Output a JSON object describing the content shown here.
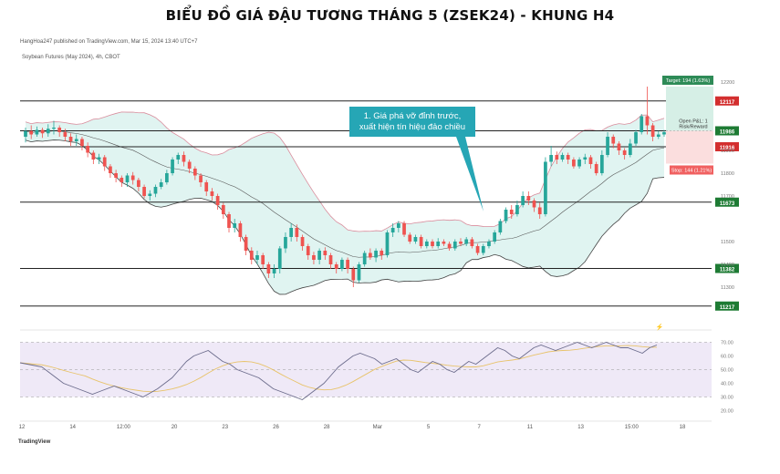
{
  "title": "BIỂU ĐỒ GIÁ ĐẬU TƯƠNG THÁNG 5 (ZSEK24) - KHUNG H4",
  "publisher_line": "HangHoa247 published on TradingView.com, Mar 15, 2024 13:40 UTC+7",
  "symbol_line": "Soybean Futures (May 2024), 4h, CBOT",
  "brand": "TradingView",
  "colors": {
    "up": "#26a69a",
    "down": "#ef5350",
    "band_fill": "#e0f4f1",
    "upper_band": "#d98c9c",
    "lower_band": "#444444",
    "basis": "#555555",
    "rsi_line": "#6c6c8c",
    "rsi_ma": "#e8c36a",
    "rsi_fill": "#efe9f7",
    "annotation_bg": "#26a6b5",
    "level_label_green": "#1e7b34",
    "level_label_red": "#d32f2f",
    "target_bg": "#2e8b57",
    "stop_bg": "#f06060"
  },
  "annotation": "1. Giá phá vỡ đỉnh trước,\nxuất hiện tín hiệu đảo chiều",
  "trade_box": {
    "target_label": "Target: 194 (1.63%)",
    "open_label": "Open P&L: 1",
    "rr_label": "Risk/Reward",
    "stop_label": "Stop: 144 (1.21%)"
  },
  "chart_data": {
    "type": "candlestick",
    "price_axis": {
      "ticks": [
        "12200",
        "11900",
        "11800",
        "11700",
        "11500",
        "11400",
        "11300"
      ],
      "range": [
        11140,
        12280
      ]
    },
    "levels": [
      {
        "value": 12117,
        "label": "12117",
        "color": "red"
      },
      {
        "value": 11986,
        "label": "11986",
        "color": "green"
      },
      {
        "value": 11916,
        "label": "11916",
        "color": "red"
      },
      {
        "value": 11673,
        "label": "11673",
        "color": "green"
      },
      {
        "value": 11382,
        "label": "11382",
        "color": "green"
      },
      {
        "value": 11217,
        "label": "11217",
        "color": "green"
      }
    ],
    "x_axis_ticks": [
      "12",
      "14",
      "12:00",
      "20",
      "23",
      "26",
      "28",
      "Mar",
      "5",
      "7",
      "11",
      "13",
      "15:00",
      "18"
    ],
    "candles": [
      [
        11960,
        11985,
        11935,
        12000
      ],
      [
        11985,
        11970,
        11950,
        12010
      ],
      [
        11970,
        11990,
        11960,
        12005
      ],
      [
        11990,
        11975,
        11955,
        12000
      ],
      [
        11975,
        11995,
        11960,
        12015
      ],
      [
        11995,
        12000,
        11970,
        12030
      ],
      [
        12000,
        11980,
        11960,
        12010
      ],
      [
        11980,
        11960,
        11940,
        11995
      ],
      [
        11960,
        11940,
        11920,
        11975
      ],
      [
        11940,
        11950,
        11920,
        11970
      ],
      [
        11950,
        11920,
        11900,
        11960
      ],
      [
        11920,
        11890,
        11870,
        11935
      ],
      [
        11890,
        11860,
        11840,
        11900
      ],
      [
        11860,
        11870,
        11840,
        11885
      ],
      [
        11870,
        11830,
        11810,
        11880
      ],
      [
        11830,
        11800,
        11780,
        11840
      ],
      [
        11800,
        11780,
        11760,
        11815
      ],
      [
        11780,
        11760,
        11740,
        11790
      ],
      [
        11760,
        11790,
        11740,
        11800
      ],
      [
        11790,
        11770,
        11750,
        11805
      ],
      [
        11770,
        11740,
        11720,
        11780
      ],
      [
        11740,
        11700,
        11690,
        11750
      ],
      [
        11700,
        11710,
        11680,
        11725
      ],
      [
        11710,
        11740,
        11695,
        11750
      ],
      [
        11740,
        11760,
        11730,
        11775
      ],
      [
        11760,
        11800,
        11750,
        11815
      ],
      [
        11800,
        11860,
        11790,
        11870
      ],
      [
        11860,
        11880,
        11840,
        11890
      ],
      [
        11880,
        11850,
        11830,
        11895
      ],
      [
        11850,
        11820,
        11800,
        11860
      ],
      [
        11820,
        11790,
        11770,
        11830
      ],
      [
        11790,
        11760,
        11740,
        11800
      ],
      [
        11760,
        11720,
        11700,
        11770
      ],
      [
        11720,
        11700,
        11680,
        11735
      ],
      [
        11700,
        11660,
        11640,
        11710
      ],
      [
        11660,
        11620,
        11600,
        11670
      ],
      [
        11620,
        11560,
        11540,
        11630
      ],
      [
        11560,
        11580,
        11540,
        11600
      ],
      [
        11580,
        11520,
        11500,
        11590
      ],
      [
        11520,
        11460,
        11440,
        11530
      ],
      [
        11460,
        11420,
        11400,
        11475
      ],
      [
        11420,
        11440,
        11400,
        11460
      ],
      [
        11440,
        11400,
        11380,
        11450
      ],
      [
        11400,
        11360,
        11340,
        11410
      ],
      [
        11360,
        11380,
        11340,
        11400
      ],
      [
        11380,
        11470,
        11360,
        11480
      ],
      [
        11470,
        11520,
        11450,
        11540
      ],
      [
        11520,
        11560,
        11500,
        11580
      ],
      [
        11560,
        11520,
        11500,
        11575
      ],
      [
        11520,
        11480,
        11460,
        11530
      ],
      [
        11480,
        11440,
        11420,
        11490
      ],
      [
        11440,
        11420,
        11400,
        11455
      ],
      [
        11420,
        11460,
        11400,
        11470
      ],
      [
        11460,
        11440,
        11420,
        11475
      ],
      [
        11440,
        11400,
        11380,
        11450
      ],
      [
        11400,
        11380,
        11360,
        11410
      ],
      [
        11380,
        11420,
        11370,
        11430
      ],
      [
        11420,
        11380,
        11360,
        11430
      ],
      [
        11380,
        11330,
        11300,
        11390
      ],
      [
        11330,
        11400,
        11320,
        11410
      ],
      [
        11400,
        11450,
        11390,
        11460
      ],
      [
        11450,
        11430,
        11420,
        11470
      ],
      [
        11430,
        11460,
        11410,
        11470
      ],
      [
        11460,
        11440,
        11420,
        11470
      ],
      [
        11440,
        11540,
        11430,
        11550
      ],
      [
        11540,
        11560,
        11520,
        11580
      ],
      [
        11560,
        11580,
        11540,
        11590
      ],
      [
        11580,
        11530,
        11520,
        11590
      ],
      [
        11530,
        11500,
        11490,
        11540
      ],
      [
        11500,
        11520,
        11490,
        11530
      ],
      [
        11520,
        11480,
        11470,
        11530
      ],
      [
        11480,
        11500,
        11470,
        11510
      ],
      [
        11500,
        11480,
        11470,
        11510
      ],
      [
        11480,
        11500,
        11470,
        11515
      ],
      [
        11500,
        11490,
        11480,
        11510
      ],
      [
        11490,
        11470,
        11460,
        11500
      ],
      [
        11470,
        11500,
        11460,
        11510
      ],
      [
        11500,
        11490,
        11480,
        11515
      ],
      [
        11490,
        11510,
        11480,
        11520
      ],
      [
        11510,
        11480,
        11470,
        11520
      ],
      [
        11480,
        11450,
        11440,
        11490
      ],
      [
        11450,
        11480,
        11440,
        11490
      ],
      [
        11480,
        11500,
        11470,
        11510
      ],
      [
        11500,
        11540,
        11490,
        11550
      ],
      [
        11540,
        11590,
        11530,
        11600
      ],
      [
        11590,
        11640,
        11580,
        11650
      ],
      [
        11640,
        11620,
        11600,
        11660
      ],
      [
        11620,
        11660,
        11610,
        11680
      ],
      [
        11660,
        11700,
        11650,
        11720
      ],
      [
        11700,
        11680,
        11660,
        11720
      ],
      [
        11680,
        11650,
        11630,
        11690
      ],
      [
        11650,
        11620,
        11600,
        11670
      ],
      [
        11620,
        11850,
        11610,
        11870
      ],
      [
        11850,
        11880,
        11830,
        11920
      ],
      [
        11880,
        11860,
        11840,
        11895
      ],
      [
        11860,
        11880,
        11850,
        11890
      ],
      [
        11880,
        11860,
        11840,
        11890
      ],
      [
        11860,
        11830,
        11820,
        11870
      ],
      [
        11830,
        11860,
        11820,
        11870
      ],
      [
        11860,
        11870,
        11840,
        11885
      ],
      [
        11870,
        11840,
        11820,
        11880
      ],
      [
        11840,
        11800,
        11790,
        11850
      ],
      [
        11800,
        11880,
        11790,
        11900
      ],
      [
        11880,
        11960,
        11870,
        11980
      ],
      [
        11960,
        11930,
        11910,
        11970
      ],
      [
        11930,
        11900,
        11880,
        11940
      ],
      [
        11900,
        11880,
        11860,
        11910
      ],
      [
        11880,
        11930,
        11870,
        11950
      ],
      [
        11930,
        11980,
        11920,
        11990
      ],
      [
        11980,
        12050,
        11970,
        12060
      ],
      [
        12050,
        12010,
        11970,
        12180
      ],
      [
        12010,
        11960,
        11940,
        12020
      ],
      [
        11960,
        11970,
        11950,
        11985
      ],
      [
        11970,
        11980,
        11960,
        11990
      ]
    ],
    "rsi": {
      "levels": [
        70,
        50,
        30
      ],
      "axis_ticks": [
        "70.00",
        "60.00",
        "50.00",
        "40.00",
        "30.00",
        "20.00"
      ],
      "values": [
        55,
        54,
        53,
        52,
        48,
        44,
        40,
        38,
        36,
        34,
        32,
        34,
        36,
        38,
        36,
        34,
        32,
        30,
        33,
        36,
        40,
        44,
        50,
        56,
        60,
        62,
        64,
        60,
        56,
        54,
        50,
        48,
        46,
        44,
        40,
        36,
        34,
        32,
        30,
        28,
        32,
        36,
        40,
        46,
        52,
        56,
        60,
        62,
        60,
        58,
        54,
        56,
        58,
        54,
        50,
        48,
        52,
        56,
        54,
        50,
        48,
        52,
        56,
        54,
        58,
        62,
        66,
        64,
        60,
        58,
        62,
        66,
        68,
        66,
        64,
        66,
        68,
        70,
        68,
        66,
        68,
        70,
        68,
        66,
        66,
        64,
        62,
        66,
        68
      ]
    }
  }
}
